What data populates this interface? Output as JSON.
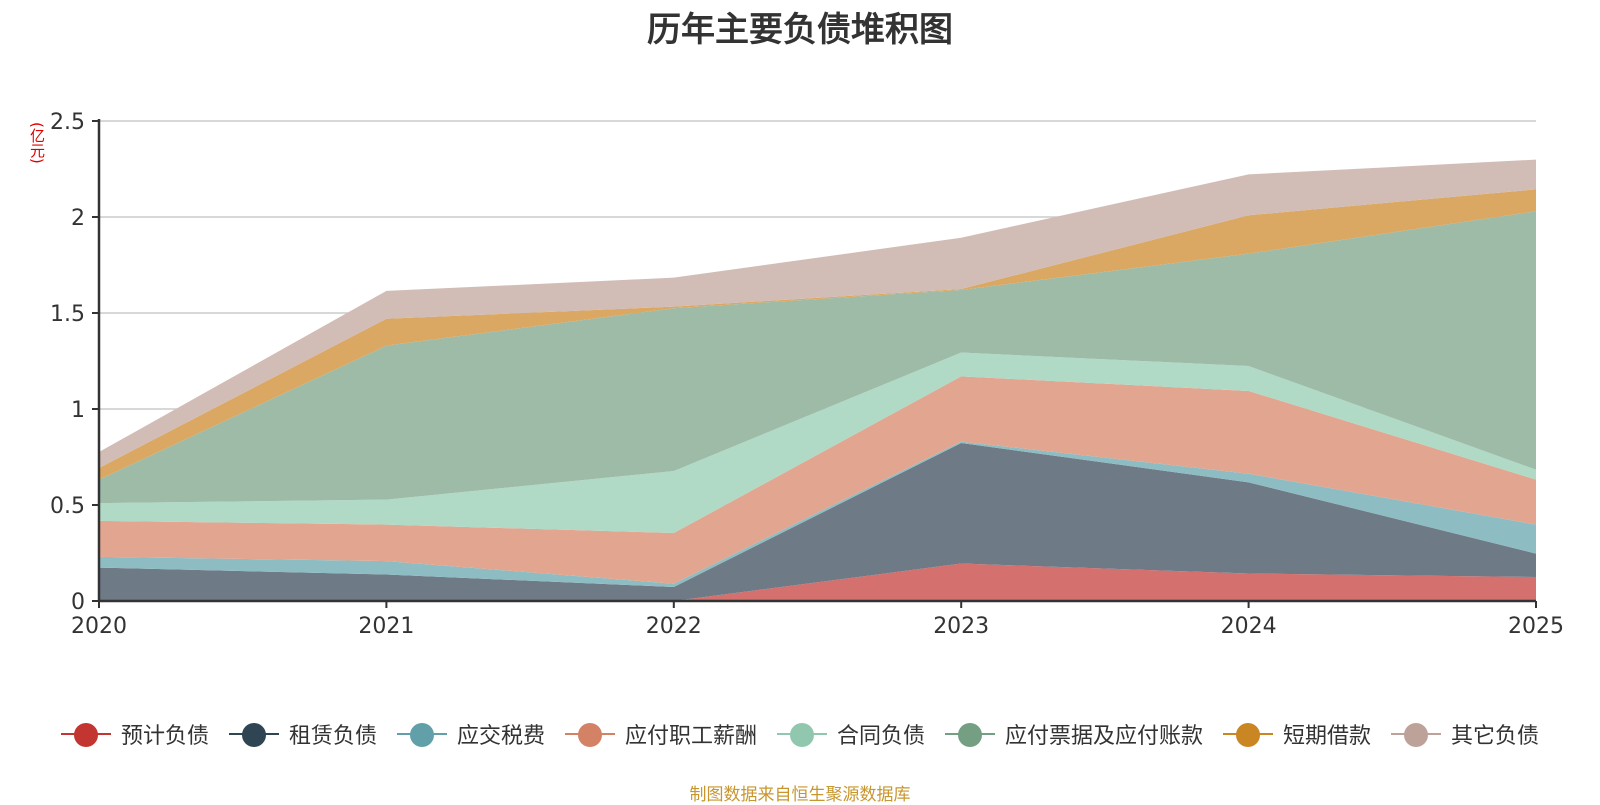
{
  "chart_data": {
    "type": "area",
    "stacked": true,
    "title": "历年主要负债堆积图",
    "unit_label": "(亿元)",
    "xlabel": "",
    "ylabel": "(亿元)",
    "categories": [
      "2020",
      "2021",
      "2022",
      "2023",
      "2024",
      "2025"
    ],
    "ylim": [
      0,
      2.5
    ],
    "yticks": [
      0,
      0.5,
      1,
      1.5,
      2,
      2.5
    ],
    "ytick_labels": [
      "0",
      "0.5",
      "1",
      "1.5",
      "2",
      "2.5"
    ],
    "grid": true,
    "legend_position": "bottom",
    "series": [
      {
        "name": "预计负债",
        "color": "#c23531",
        "fill": "#d4706d",
        "values": [
          0,
          0,
          0,
          0.195,
          0.143,
          0.125
        ]
      },
      {
        "name": "租赁负债",
        "color": "#2f4554",
        "fill": "#6e7b87",
        "values": [
          0.174,
          0.138,
          0.073,
          0.628,
          0.475,
          0.122
        ]
      },
      {
        "name": "应交税费",
        "color": "#61a0a8",
        "fill": "#8dbcc2",
        "values": [
          0.056,
          0.07,
          0.017,
          0.007,
          0.045,
          0.151
        ]
      },
      {
        "name": "应付职工薪酬",
        "color": "#d48265",
        "fill": "#e2a590",
        "values": [
          0.187,
          0.19,
          0.264,
          0.34,
          0.431,
          0.234
        ]
      },
      {
        "name": "合同负债",
        "color": "#91c7ae",
        "fill": "#b0d9c6",
        "values": [
          0.093,
          0.13,
          0.323,
          0.124,
          0.13,
          0.052
        ]
      },
      {
        "name": "应付票据及应付账款",
        "color": "#749f83",
        "fill": "#9dbba7",
        "values": [
          0.122,
          0.802,
          0.848,
          0.326,
          0.585,
          1.346
        ]
      },
      {
        "name": "短期借款",
        "color": "#ca8622",
        "fill": "#daa862",
        "values": [
          0.061,
          0.14,
          0.008,
          0.005,
          0.2,
          0.114
        ]
      },
      {
        "name": "其它负债",
        "color": "#bda29a",
        "fill": "#d1bcb6",
        "values": [
          0.083,
          0.145,
          0.151,
          0.267,
          0.213,
          0.155
        ]
      }
    ]
  },
  "footer": "制图数据来自恒生聚源数据库"
}
